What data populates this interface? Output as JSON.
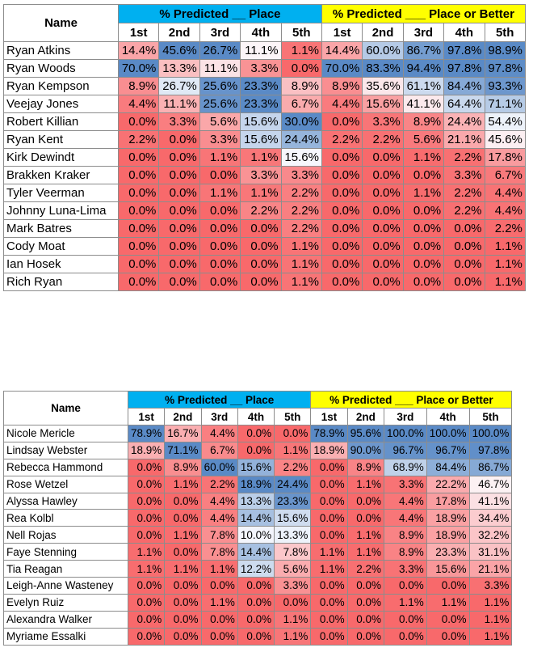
{
  "tables": [
    {
      "name_header": "Name",
      "group_place": "% Predicted __ Place",
      "group_better": "% Predicted ___ Place or Better",
      "sub_headers": [
        "1st",
        "2nd",
        "3rd",
        "4th",
        "5th",
        "1st",
        "2nd",
        "3rd",
        "4th",
        "5th"
      ],
      "rows": [
        {
          "name": "Ryan Atkins",
          "values": [
            "14.4%",
            "45.6%",
            "26.7%",
            "11.1%",
            "1.1%",
            "14.4%",
            "60.0%",
            "86.7%",
            "97.8%",
            "98.9%"
          ]
        },
        {
          "name": "Ryan Woods",
          "values": [
            "70.0%",
            "13.3%",
            "11.1%",
            "3.3%",
            "0.0%",
            "70.0%",
            "83.3%",
            "94.4%",
            "97.8%",
            "97.8%"
          ]
        },
        {
          "name": "Ryan Kempson",
          "values": [
            "8.9%",
            "26.7%",
            "25.6%",
            "23.3%",
            "8.9%",
            "8.9%",
            "35.6%",
            "61.1%",
            "84.4%",
            "93.3%"
          ]
        },
        {
          "name": "Veejay Jones",
          "values": [
            "4.4%",
            "11.1%",
            "25.6%",
            "23.3%",
            "6.7%",
            "4.4%",
            "15.6%",
            "41.1%",
            "64.4%",
            "71.1%"
          ]
        },
        {
          "name": "Robert Killian",
          "values": [
            "0.0%",
            "3.3%",
            "5.6%",
            "15.6%",
            "30.0%",
            "0.0%",
            "3.3%",
            "8.9%",
            "24.4%",
            "54.4%"
          ]
        },
        {
          "name": "Ryan Kent",
          "values": [
            "2.2%",
            "0.0%",
            "3.3%",
            "15.6%",
            "24.4%",
            "2.2%",
            "2.2%",
            "5.6%",
            "21.1%",
            "45.6%"
          ]
        },
        {
          "name": "Kirk Dewindt",
          "values": [
            "0.0%",
            "0.0%",
            "1.1%",
            "1.1%",
            "15.6%",
            "0.0%",
            "0.0%",
            "1.1%",
            "2.2%",
            "17.8%"
          ]
        },
        {
          "name": "Brakken Kraker",
          "values": [
            "0.0%",
            "0.0%",
            "0.0%",
            "3.3%",
            "3.3%",
            "0.0%",
            "0.0%",
            "0.0%",
            "3.3%",
            "6.7%"
          ]
        },
        {
          "name": "Tyler Veerman",
          "values": [
            "0.0%",
            "0.0%",
            "1.1%",
            "1.1%",
            "2.2%",
            "0.0%",
            "0.0%",
            "1.1%",
            "2.2%",
            "4.4%"
          ]
        },
        {
          "name": "Johnny Luna-Lima",
          "values": [
            "0.0%",
            "0.0%",
            "0.0%",
            "2.2%",
            "2.2%",
            "0.0%",
            "0.0%",
            "0.0%",
            "2.2%",
            "4.4%"
          ]
        },
        {
          "name": "Mark Batres",
          "values": [
            "0.0%",
            "0.0%",
            "0.0%",
            "0.0%",
            "2.2%",
            "0.0%",
            "0.0%",
            "0.0%",
            "0.0%",
            "2.2%"
          ]
        },
        {
          "name": "Cody Moat",
          "values": [
            "0.0%",
            "0.0%",
            "0.0%",
            "0.0%",
            "1.1%",
            "0.0%",
            "0.0%",
            "0.0%",
            "0.0%",
            "1.1%"
          ]
        },
        {
          "name": "Ian Hosek",
          "values": [
            "0.0%",
            "0.0%",
            "0.0%",
            "0.0%",
            "1.1%",
            "0.0%",
            "0.0%",
            "0.0%",
            "0.0%",
            "1.1%"
          ]
        },
        {
          "name": "Rich Ryan",
          "values": [
            "0.0%",
            "0.0%",
            "0.0%",
            "0.0%",
            "1.1%",
            "0.0%",
            "0.0%",
            "0.0%",
            "0.0%",
            "1.1%"
          ]
        }
      ]
    },
    {
      "name_header": "Name",
      "group_place": "% Predicted __ Place",
      "group_better": "% Predicted ___ Place or Better",
      "sub_headers": [
        "1st",
        "2nd",
        "3rd",
        "4th",
        "5th",
        "1st",
        "2nd",
        "3rd",
        "4th",
        "5th"
      ],
      "rows": [
        {
          "name": "Nicole Mericle",
          "values": [
            "78.9%",
            "16.7%",
            "4.4%",
            "0.0%",
            "0.0%",
            "78.9%",
            "95.6%",
            "100.0%",
            "100.0%",
            "100.0%"
          ]
        },
        {
          "name": "Lindsay Webster",
          "values": [
            "18.9%",
            "71.1%",
            "6.7%",
            "0.0%",
            "1.1%",
            "18.9%",
            "90.0%",
            "96.7%",
            "96.7%",
            "97.8%"
          ]
        },
        {
          "name": "Rebecca Hammond",
          "values": [
            "0.0%",
            "8.9%",
            "60.0%",
            "15.6%",
            "2.2%",
            "0.0%",
            "8.9%",
            "68.9%",
            "84.4%",
            "86.7%"
          ]
        },
        {
          "name": "Rose Wetzel",
          "values": [
            "0.0%",
            "1.1%",
            "2.2%",
            "18.9%",
            "24.4%",
            "0.0%",
            "1.1%",
            "3.3%",
            "22.2%",
            "46.7%"
          ]
        },
        {
          "name": "Alyssa Hawley",
          "values": [
            "0.0%",
            "0.0%",
            "4.4%",
            "13.3%",
            "23.3%",
            "0.0%",
            "0.0%",
            "4.4%",
            "17.8%",
            "41.1%"
          ]
        },
        {
          "name": "Rea Kolbl",
          "values": [
            "0.0%",
            "0.0%",
            "4.4%",
            "14.4%",
            "15.6%",
            "0.0%",
            "0.0%",
            "4.4%",
            "18.9%",
            "34.4%"
          ]
        },
        {
          "name": "Nell Rojas",
          "values": [
            "0.0%",
            "1.1%",
            "7.8%",
            "10.0%",
            "13.3%",
            "0.0%",
            "1.1%",
            "8.9%",
            "18.9%",
            "32.2%"
          ]
        },
        {
          "name": "Faye Stenning",
          "values": [
            "1.1%",
            "0.0%",
            "7.8%",
            "14.4%",
            "7.8%",
            "1.1%",
            "1.1%",
            "8.9%",
            "23.3%",
            "31.1%"
          ]
        },
        {
          "name": "Tia Reagan",
          "values": [
            "1.1%",
            "1.1%",
            "1.1%",
            "12.2%",
            "5.6%",
            "1.1%",
            "2.2%",
            "3.3%",
            "15.6%",
            "21.1%"
          ]
        },
        {
          "name": "Leigh-Anne Wasteney",
          "values": [
            "0.0%",
            "0.0%",
            "0.0%",
            "0.0%",
            "3.3%",
            "0.0%",
            "0.0%",
            "0.0%",
            "0.0%",
            "3.3%"
          ]
        },
        {
          "name": "Evelyn Ruiz",
          "values": [
            "0.0%",
            "0.0%",
            "1.1%",
            "0.0%",
            "0.0%",
            "0.0%",
            "0.0%",
            "1.1%",
            "1.1%",
            "1.1%"
          ]
        },
        {
          "name": "Alexandra Walker",
          "values": [
            "0.0%",
            "0.0%",
            "0.0%",
            "0.0%",
            "1.1%",
            "0.0%",
            "0.0%",
            "0.0%",
            "0.0%",
            "1.1%"
          ]
        },
        {
          "name": "Myriame Essalki",
          "values": [
            "0.0%",
            "0.0%",
            "0.0%",
            "0.0%",
            "1.1%",
            "0.0%",
            "0.0%",
            "0.0%",
            "0.0%",
            "1.1%"
          ]
        }
      ]
    }
  ],
  "colors": {
    "header_place": "#00b0f0",
    "header_better": "#ffff00",
    "scale_low": "#f8696b",
    "scale_mid": "#fcfcff",
    "scale_high": "#5a8ac6"
  }
}
